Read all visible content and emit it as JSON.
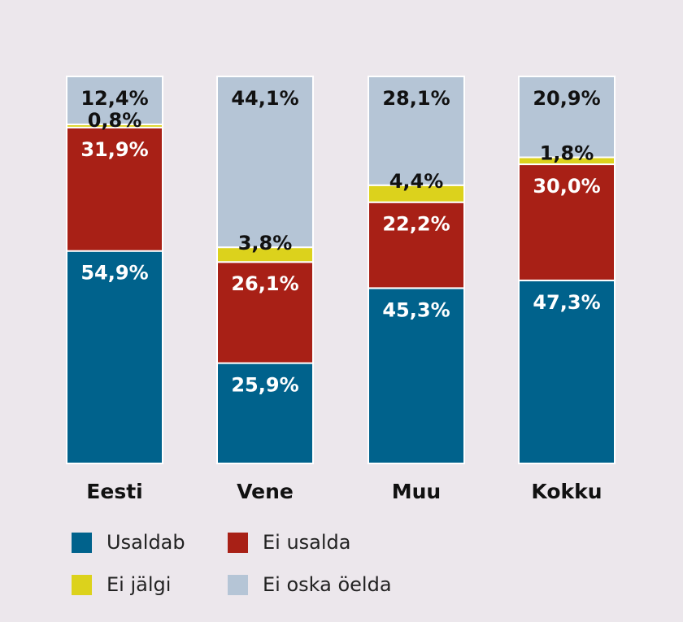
{
  "chart_data": {
    "type": "bar",
    "stacked": true,
    "normalized_to_100": true,
    "categories": [
      "Eesti",
      "Vene",
      "Muu",
      "Kokku"
    ],
    "series": [
      {
        "name": "Usaldab",
        "color": "#00628c",
        "label_color": "#ffffff",
        "values": [
          54.9,
          25.9,
          45.3,
          47.3
        ]
      },
      {
        "name": "Ei usalda",
        "color": "#a82016",
        "label_color": "#ffffff",
        "values": [
          31.9,
          26.1,
          22.2,
          30.0
        ]
      },
      {
        "name": "Ei jälgi",
        "color": "#dcd21c",
        "label_color": "#111111",
        "values": [
          0.8,
          3.8,
          4.4,
          1.8
        ]
      },
      {
        "name": "Ei oska öelda",
        "color": "#b5c5d6",
        "label_color": "#111111",
        "values": [
          12.4,
          44.1,
          28.1,
          20.9
        ]
      }
    ],
    "value_labels": [
      [
        "54,9%",
        "25,9%",
        "45,3%",
        "47,3%"
      ],
      [
        "31,9%",
        "26,1%",
        "22,2%",
        "30,0%"
      ],
      [
        "0,8%",
        "3,8%",
        "4,4%",
        "1,8%"
      ],
      [
        "12,4%",
        "44,1%",
        "28,1%",
        "20,9%"
      ]
    ],
    "legend_position": "bottom",
    "grid": false
  }
}
